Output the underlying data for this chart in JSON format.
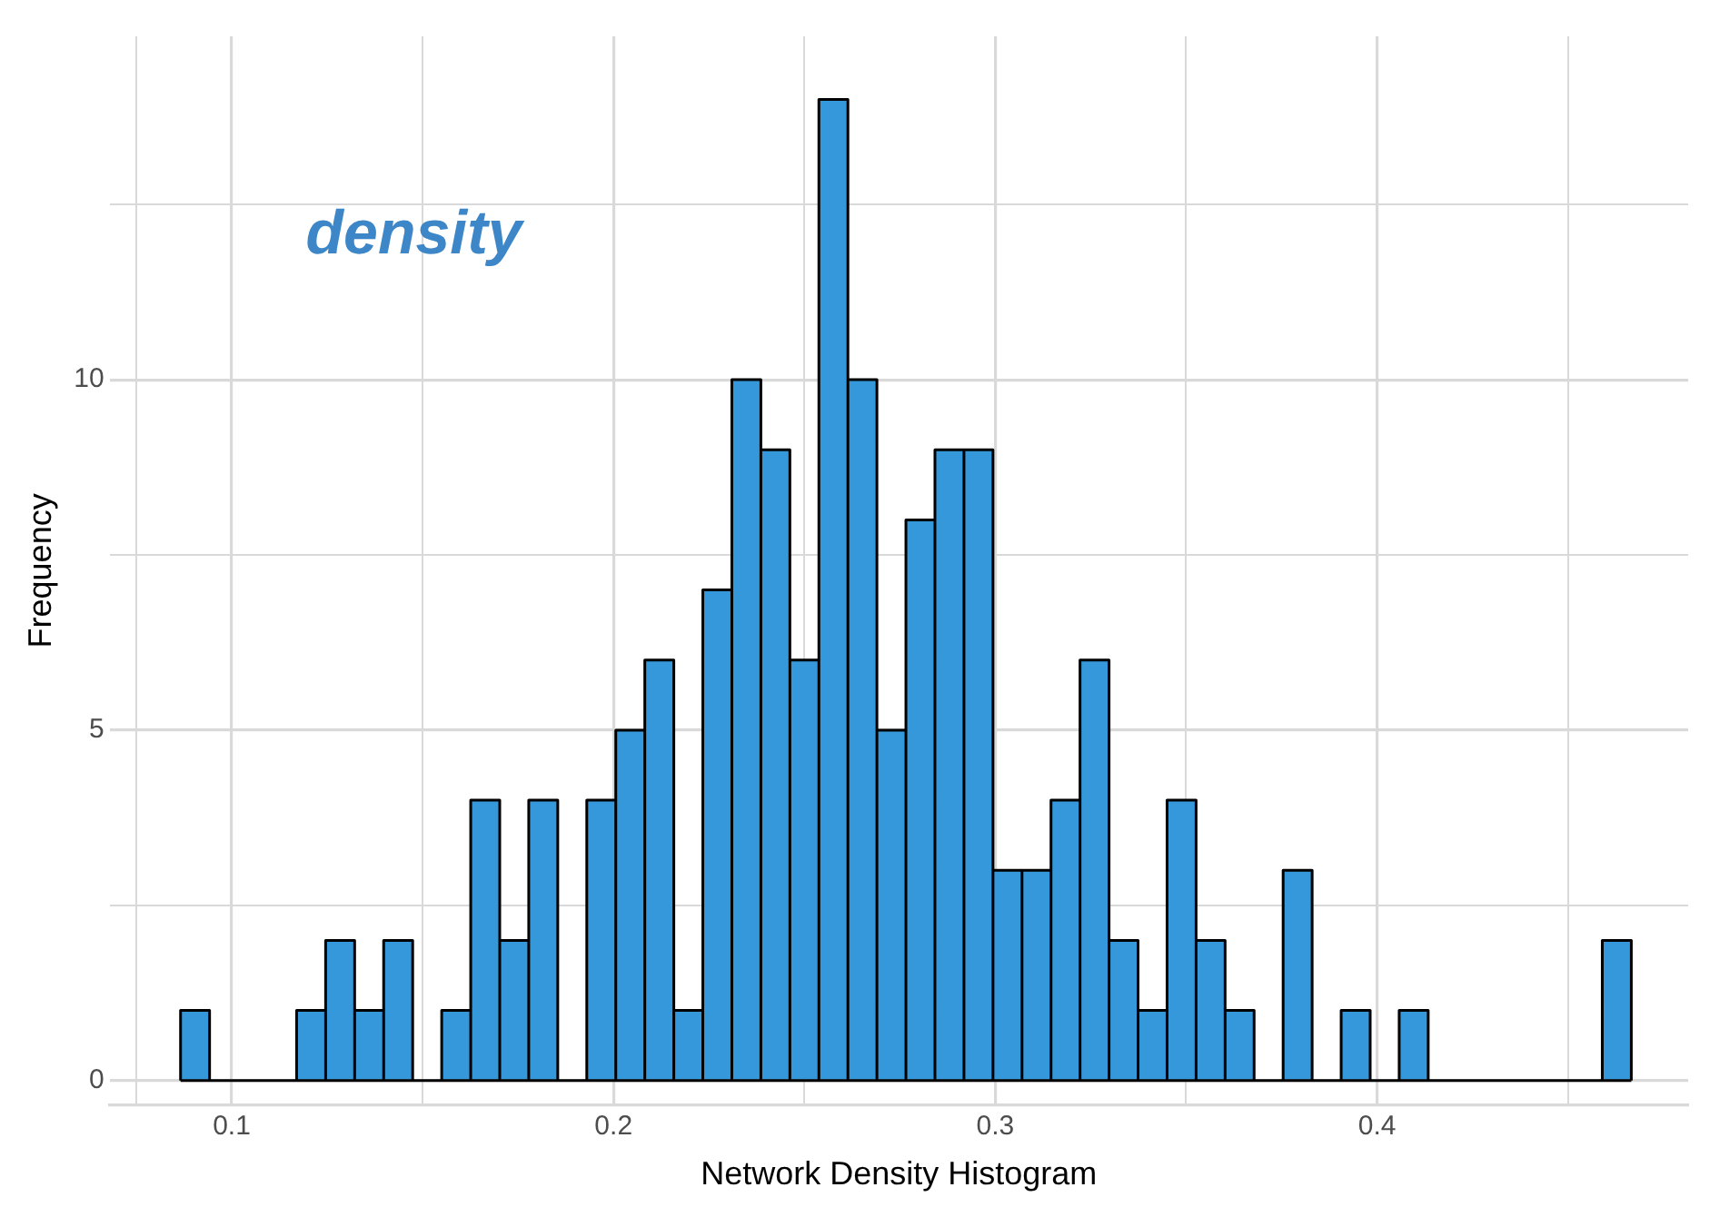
{
  "chart_data": {
    "type": "histogram",
    "xlabel": "Network Density Histogram",
    "ylabel": "Frequency",
    "annotations": [
      "density"
    ],
    "bins": [
      0.0866,
      0.0942,
      0.1018,
      0.1094,
      0.117,
      0.1246,
      0.1322,
      0.1398,
      0.1474,
      0.155,
      0.1626,
      0.1702,
      0.1778,
      0.1854,
      0.193,
      0.2006,
      0.2082,
      0.2158,
      0.2234,
      0.231,
      0.2386,
      0.2462,
      0.2538,
      0.2614,
      0.269,
      0.2766,
      0.2842,
      0.2918,
      0.2994,
      0.307,
      0.3146,
      0.3222,
      0.3298,
      0.3374,
      0.345,
      0.3526,
      0.3602,
      0.3678,
      0.3754,
      0.383,
      0.3906,
      0.3982,
      0.4058,
      0.4134,
      0.421,
      0.4286,
      0.4362,
      0.4438,
      0.4514,
      0.459,
      0.4666
    ],
    "values": [
      1,
      0,
      0,
      0,
      1,
      2,
      1,
      2,
      0,
      1,
      4,
      2,
      4,
      0,
      4,
      5,
      6,
      1,
      7,
      10,
      9,
      6,
      14,
      10,
      5,
      8,
      9,
      9,
      3,
      3,
      4,
      6,
      2,
      1,
      4,
      2,
      1,
      0,
      3,
      0,
      1,
      0,
      1,
      0,
      0,
      0,
      0,
      0,
      0,
      2
    ],
    "color": "#3498db",
    "xlim": [
      0.068,
      0.4815
    ],
    "ylim": [
      -0.35,
      14.9
    ],
    "xticks": [
      {
        "value": 0.075,
        "label": null
      },
      0.1,
      {
        "value": 0.15,
        "label": null
      },
      0.2,
      {
        "value": 0.25,
        "label": null
      },
      0.3,
      {
        "value": 0.35,
        "label": null
      },
      0.4,
      {
        "value": 0.45,
        "label": null
      }
    ],
    "yticks": [
      0,
      {
        "value": 2.5,
        "label": null
      },
      5,
      {
        "value": 7.5,
        "label": null
      },
      10,
      {
        "value": 12.5,
        "label": null
      }
    ],
    "grid": true
  }
}
